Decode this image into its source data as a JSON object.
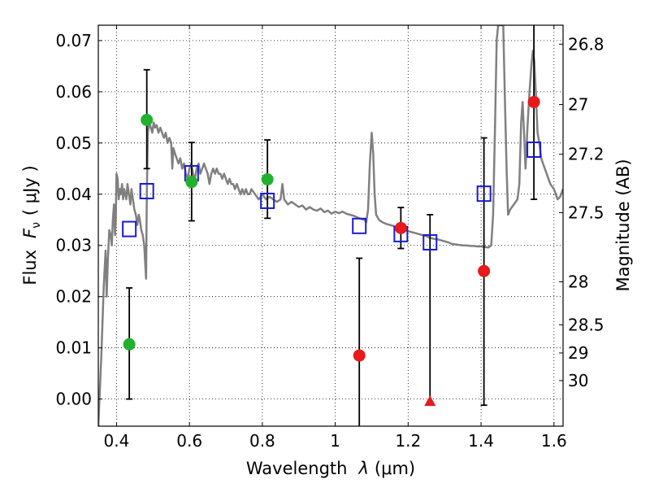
{
  "chart_data": {
    "type": "scatter",
    "xlabel": "Wavelength",
    "xlabel_symbol": "λ",
    "xlabel_unit": "(μm)",
    "ylabel": "Flux",
    "ylabel_symbol": "F",
    "ylabel_subscript": "ν",
    "ylabel_unit": "( μJy )",
    "ylabel_right": "Magnitude (AB)",
    "xlim": [
      0.35,
      1.625
    ],
    "ylim": [
      -0.0053,
      0.073
    ],
    "x_ticks": [
      0.4,
      0.6,
      0.8,
      1.0,
      1.2,
      1.4,
      1.6
    ],
    "x_tick_labels": [
      "0.4",
      "0.6",
      "0.8",
      "1",
      "1.2",
      "1.4",
      "1.6"
    ],
    "y_ticks": [
      0.0,
      0.01,
      0.02,
      0.03,
      0.04,
      0.05,
      0.06,
      0.07
    ],
    "y_tick_labels": [
      "0.00",
      "0.01",
      "0.02",
      "0.03",
      "0.04",
      "0.05",
      "0.06",
      "0.07"
    ],
    "right_ticks": [
      {
        "flux": 0.0693,
        "label": "26.8"
      },
      {
        "flux": 0.0575,
        "label": "27"
      },
      {
        "flux": 0.0478,
        "label": "27.2"
      },
      {
        "flux": 0.0364,
        "label": "27.5"
      },
      {
        "flux": 0.0229,
        "label": "28"
      },
      {
        "flux": 0.0145,
        "label": "28.5"
      },
      {
        "flux": 0.009,
        "label": "29"
      },
      {
        "flux": 0.0036,
        "label": "30"
      }
    ],
    "grid": true,
    "colors": {
      "sed": "#808080",
      "green": "#22b02f",
      "red": "#e81a1a",
      "model": "#1a1ad8",
      "errorbar": "#000000"
    },
    "sed_curve": {
      "name": "SED template",
      "points": [
        [
          0.35,
          -0.0053
        ],
        [
          0.358,
          0.008
        ],
        [
          0.365,
          0.022
        ],
        [
          0.37,
          0.029
        ],
        [
          0.373,
          0.02
        ],
        [
          0.376,
          0.027
        ],
        [
          0.38,
          0.033
        ],
        [
          0.384,
          0.032
        ],
        [
          0.387,
          0.03
        ],
        [
          0.39,
          0.035
        ],
        [
          0.393,
          0.038
        ],
        [
          0.396,
          0.032
        ],
        [
          0.398,
          0.035
        ],
        [
          0.4,
          0.044
        ],
        [
          0.403,
          0.043
        ],
        [
          0.406,
          0.039
        ],
        [
          0.409,
          0.041
        ],
        [
          0.412,
          0.04
        ],
        [
          0.415,
          0.042
        ],
        [
          0.418,
          0.039
        ],
        [
          0.421,
          0.041
        ],
        [
          0.424,
          0.04
        ],
        [
          0.427,
          0.039
        ],
        [
          0.43,
          0.042
        ],
        [
          0.434,
          0.04
        ],
        [
          0.438,
          0.038
        ],
        [
          0.441,
          0.041
        ],
        [
          0.445,
          0.039
        ],
        [
          0.449,
          0.037
        ],
        [
          0.453,
          0.036
        ],
        [
          0.457,
          0.034
        ],
        [
          0.461,
          0.036
        ],
        [
          0.464,
          0.035
        ],
        [
          0.468,
          0.033
        ],
        [
          0.472,
          0.032
        ],
        [
          0.476,
          0.03
        ],
        [
          0.479,
          0.026
        ],
        [
          0.481,
          0.0235
        ],
        [
          0.483,
          0.04
        ],
        [
          0.486,
          0.052
        ],
        [
          0.49,
          0.054
        ],
        [
          0.494,
          0.053
        ],
        [
          0.498,
          0.052
        ],
        [
          0.502,
          0.054
        ],
        [
          0.506,
          0.053
        ],
        [
          0.51,
          0.0535
        ],
        [
          0.515,
          0.052
        ],
        [
          0.52,
          0.053
        ],
        [
          0.525,
          0.052
        ],
        [
          0.53,
          0.051
        ],
        [
          0.535,
          0.052
        ],
        [
          0.54,
          0.05
        ],
        [
          0.545,
          0.051
        ],
        [
          0.55,
          0.05
        ],
        [
          0.553,
          0.045
        ],
        [
          0.556,
          0.049
        ],
        [
          0.56,
          0.048
        ],
        [
          0.565,
          0.047
        ],
        [
          0.57,
          0.046
        ],
        [
          0.575,
          0.047
        ],
        [
          0.58,
          0.045
        ],
        [
          0.585,
          0.046
        ],
        [
          0.59,
          0.044
        ],
        [
          0.595,
          0.043
        ],
        [
          0.6,
          0.045
        ],
        [
          0.605,
          0.046
        ],
        [
          0.61,
          0.044
        ],
        [
          0.615,
          0.043
        ],
        [
          0.62,
          0.045
        ],
        [
          0.625,
          0.046
        ],
        [
          0.63,
          0.044
        ],
        [
          0.635,
          0.045
        ],
        [
          0.64,
          0.046
        ],
        [
          0.645,
          0.045
        ],
        [
          0.65,
          0.044
        ],
        [
          0.655,
          0.042
        ],
        [
          0.66,
          0.044
        ],
        [
          0.665,
          0.045
        ],
        [
          0.67,
          0.044
        ],
        [
          0.675,
          0.045
        ],
        [
          0.68,
          0.044
        ],
        [
          0.685,
          0.044
        ],
        [
          0.69,
          0.043
        ],
        [
          0.695,
          0.044
        ],
        [
          0.7,
          0.043
        ],
        [
          0.705,
          0.042
        ],
        [
          0.71,
          0.043
        ],
        [
          0.715,
          0.042
        ],
        [
          0.72,
          0.042
        ],
        [
          0.725,
          0.041
        ],
        [
          0.73,
          0.042
        ],
        [
          0.735,
          0.041
        ],
        [
          0.74,
          0.04
        ],
        [
          0.745,
          0.041
        ],
        [
          0.75,
          0.04
        ],
        [
          0.755,
          0.041
        ],
        [
          0.76,
          0.04
        ],
        [
          0.765,
          0.04
        ],
        [
          0.77,
          0.041
        ],
        [
          0.78,
          0.04
        ],
        [
          0.79,
          0.039
        ],
        [
          0.8,
          0.04
        ],
        [
          0.81,
          0.039
        ],
        [
          0.82,
          0.0395
        ],
        [
          0.83,
          0.039
        ],
        [
          0.84,
          0.0385
        ],
        [
          0.85,
          0.039
        ],
        [
          0.855,
          0.042
        ],
        [
          0.86,
          0.039
        ],
        [
          0.87,
          0.038
        ],
        [
          0.88,
          0.0385
        ],
        [
          0.89,
          0.038
        ],
        [
          0.9,
          0.0375
        ],
        [
          0.91,
          0.0378
        ],
        [
          0.92,
          0.037
        ],
        [
          0.93,
          0.0375
        ],
        [
          0.94,
          0.037
        ],
        [
          0.95,
          0.0368
        ],
        [
          0.96,
          0.0372
        ],
        [
          0.97,
          0.0365
        ],
        [
          0.98,
          0.0368
        ],
        [
          0.99,
          0.0362
        ],
        [
          1.0,
          0.0366
        ],
        [
          1.01,
          0.0363
        ],
        [
          1.02,
          0.0366
        ],
        [
          1.03,
          0.0362
        ],
        [
          1.04,
          0.036
        ],
        [
          1.05,
          0.0358
        ],
        [
          1.06,
          0.0355
        ],
        [
          1.07,
          0.0352
        ],
        [
          1.08,
          0.035
        ],
        [
          1.085,
          0.0345
        ],
        [
          1.09,
          0.037
        ],
        [
          1.095,
          0.046
        ],
        [
          1.1,
          0.052
        ],
        [
          1.104,
          0.048
        ],
        [
          1.108,
          0.04
        ],
        [
          1.112,
          0.036
        ],
        [
          1.12,
          0.035
        ],
        [
          1.13,
          0.0345
        ],
        [
          1.14,
          0.0342
        ],
        [
          1.15,
          0.034
        ],
        [
          1.16,
          0.0338
        ],
        [
          1.17,
          0.0335
        ],
        [
          1.18,
          0.0333
        ],
        [
          1.19,
          0.033
        ],
        [
          1.2,
          0.0328
        ],
        [
          1.21,
          0.0326
        ],
        [
          1.22,
          0.0324
        ],
        [
          1.23,
          0.0322
        ],
        [
          1.24,
          0.032
        ],
        [
          1.25,
          0.0318
        ],
        [
          1.26,
          0.0315
        ],
        [
          1.27,
          0.0313
        ],
        [
          1.28,
          0.0312
        ],
        [
          1.29,
          0.031
        ],
        [
          1.3,
          0.0308
        ],
        [
          1.31,
          0.0306
        ],
        [
          1.32,
          0.0303
        ],
        [
          1.33,
          0.0302
        ],
        [
          1.34,
          0.0301
        ],
        [
          1.35,
          0.03
        ],
        [
          1.36,
          0.03
        ],
        [
          1.37,
          0.0299
        ],
        [
          1.38,
          0.0299
        ],
        [
          1.39,
          0.0298
        ],
        [
          1.4,
          0.0298
        ],
        [
          1.41,
          0.0297
        ],
        [
          1.42,
          0.0296
        ],
        [
          1.428,
          0.03
        ],
        [
          1.433,
          0.036
        ],
        [
          1.438,
          0.052
        ],
        [
          1.443,
          0.07
        ],
        [
          1.447,
          0.073
        ],
        [
          1.461,
          0.073
        ],
        [
          1.465,
          0.06
        ],
        [
          1.47,
          0.045
        ],
        [
          1.474,
          0.036
        ],
        [
          1.48,
          0.037
        ],
        [
          1.49,
          0.038
        ],
        [
          1.5,
          0.039
        ],
        [
          1.505,
          0.042
        ],
        [
          1.51,
          0.054
        ],
        [
          1.514,
          0.058
        ],
        [
          1.518,
          0.052
        ],
        [
          1.522,
          0.045
        ],
        [
          1.528,
          0.054
        ],
        [
          1.533,
          0.06
        ],
        [
          1.538,
          0.065
        ],
        [
          1.542,
          0.068
        ],
        [
          1.546,
          0.066
        ],
        [
          1.55,
          0.06
        ],
        [
          1.555,
          0.052
        ],
        [
          1.56,
          0.05
        ],
        [
          1.565,
          0.047
        ],
        [
          1.57,
          0.046
        ],
        [
          1.58,
          0.044
        ],
        [
          1.59,
          0.042
        ],
        [
          1.6,
          0.041
        ],
        [
          1.61,
          0.039
        ],
        [
          1.617,
          0.0395
        ],
        [
          1.625,
          0.041
        ]
      ]
    },
    "observed_green": [
      {
        "x": 0.435,
        "y": 0.0107,
        "err_low": 0.0107,
        "err_high": 0.011
      },
      {
        "x": 0.483,
        "y": 0.0545,
        "err_low": 0.0095,
        "err_high": 0.0098
      },
      {
        "x": 0.606,
        "y": 0.0424,
        "err_low": 0.0076,
        "err_high": 0.0077
      },
      {
        "x": 0.814,
        "y": 0.0429,
        "err_low": 0.0076,
        "err_high": 0.0077
      }
    ],
    "observed_red": [
      {
        "x": 1.066,
        "y": 0.0085,
        "err_low": 0.0141,
        "err_high": 0.019
      },
      {
        "x": 1.18,
        "y": 0.0334,
        "err_low": 0.004,
        "err_high": 0.004
      },
      {
        "x": 1.26,
        "y": -0.0004,
        "marker": "triangle",
        "err_low": 0.0,
        "err_high": 0.0364
      },
      {
        "x": 1.408,
        "y": 0.025,
        "err_low": 0.0262,
        "err_high": 0.026
      },
      {
        "x": 1.545,
        "y": 0.058,
        "err_low": 0.019,
        "err_high": 0.0152
      }
    ],
    "model_points": [
      {
        "x": 0.435,
        "y": 0.0332
      },
      {
        "x": 0.483,
        "y": 0.0406
      },
      {
        "x": 0.606,
        "y": 0.0441
      },
      {
        "x": 0.814,
        "y": 0.0387
      },
      {
        "x": 1.066,
        "y": 0.0338
      },
      {
        "x": 1.18,
        "y": 0.0322
      },
      {
        "x": 1.26,
        "y": 0.0306
      },
      {
        "x": 1.408,
        "y": 0.0401
      },
      {
        "x": 1.545,
        "y": 0.0487
      }
    ]
  }
}
